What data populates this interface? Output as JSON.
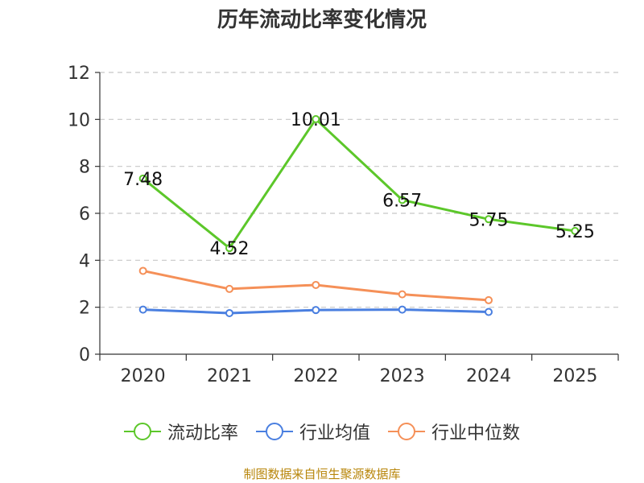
{
  "title": "历年流动比率变化情况",
  "source": "制图数据来自恒生聚源数据库",
  "chart_data": {
    "type": "line",
    "title": "历年流动比率变化情况",
    "categories": [
      "2020",
      "2021",
      "2022",
      "2023",
      "2024",
      "2025"
    ],
    "ylim": [
      0,
      12
    ],
    "yticks": [
      "0",
      "2",
      "4",
      "6",
      "8",
      "10",
      "12"
    ],
    "grid": true,
    "legend_position": "bottom",
    "series": [
      {
        "name": "流动比率",
        "color": "#5cc72a",
        "values": [
          7.48,
          4.52,
          10.01,
          6.57,
          5.75,
          5.25
        ],
        "labels": [
          "7.48",
          "4.52",
          "10.01",
          "6.57",
          "5.75",
          "5.25"
        ]
      },
      {
        "name": "行业均值",
        "color": "#4a7fe0",
        "values": [
          1.9,
          1.75,
          1.88,
          1.9,
          1.8,
          null
        ]
      },
      {
        "name": "行业中位数",
        "color": "#f59058",
        "values": [
          3.55,
          2.78,
          2.95,
          2.55,
          2.3,
          null
        ]
      }
    ]
  }
}
